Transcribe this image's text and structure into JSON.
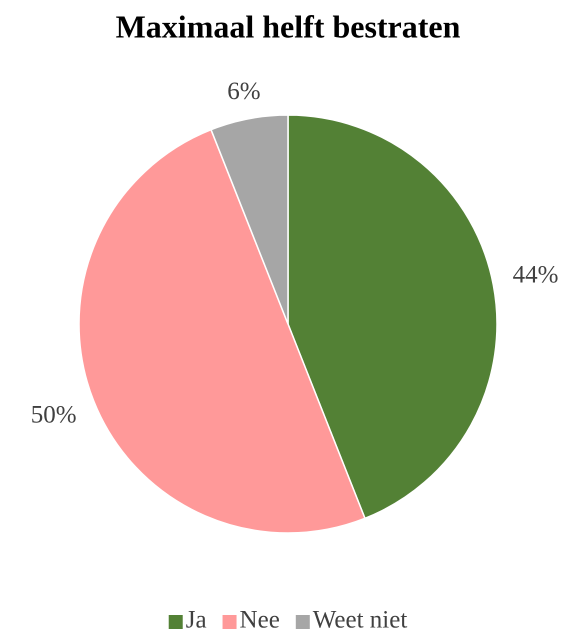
{
  "chart_data": {
    "type": "pie",
    "title": "Maximaal helft bestraten",
    "categories": [
      "Ja",
      "Nee",
      "Weet niet"
    ],
    "values": [
      44,
      50,
      6
    ],
    "value_labels": [
      "44%",
      "50%",
      "6%"
    ],
    "colors": [
      "#538135",
      "#ff9999",
      "#a6a6a6"
    ],
    "legend": "bottom"
  }
}
